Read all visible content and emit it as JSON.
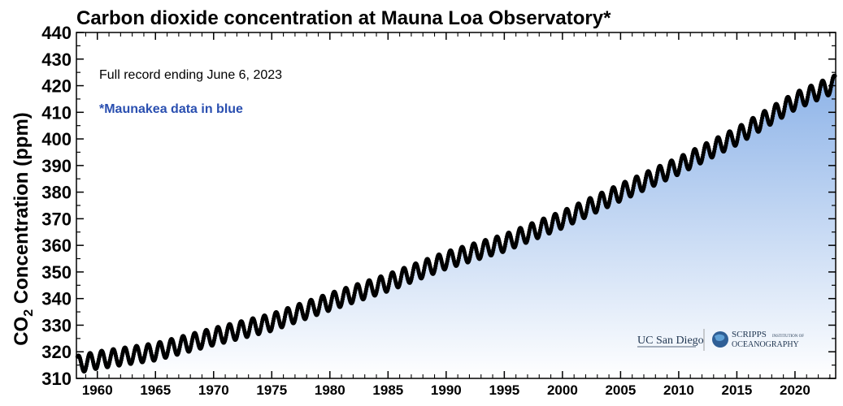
{
  "chart_data": {
    "type": "line",
    "title": "Carbon dioxide concentration at Mauna Loa Observatory*",
    "xlabel": "",
    "ylabel_main": "CO",
    "ylabel_sub": "2",
    "ylabel_rest": " Concentration (ppm)",
    "xlim": [
      1958.2,
      2023.5
    ],
    "ylim": [
      310,
      440
    ],
    "x_ticks": [
      1960,
      1965,
      1970,
      1975,
      1980,
      1985,
      1990,
      1995,
      2000,
      2005,
      2010,
      2015,
      2020
    ],
    "y_ticks": [
      310,
      320,
      330,
      340,
      350,
      360,
      370,
      380,
      390,
      400,
      410,
      420,
      430,
      440
    ],
    "grid": false,
    "marker_color": "#000000",
    "fill_color_top": "#8db3e8",
    "fill_color_bottom": "#ffffff",
    "annotations": {
      "record_note": "Full record ending June 6, 2023",
      "maunakea_note": "*Maunakea data in blue"
    },
    "series": [
      {
        "name": "",
        "seasonal_amplitude_ppm": 3.2,
        "yearly_trend": [
          {
            "x": 1958.0,
            "y": 315.0
          },
          {
            "x": 1960.0,
            "y": 316.9
          },
          {
            "x": 1965.0,
            "y": 320.0
          },
          {
            "x": 1970.0,
            "y": 325.7
          },
          {
            "x": 1975.0,
            "y": 331.1
          },
          {
            "x": 1980.0,
            "y": 338.8
          },
          {
            "x": 1985.0,
            "y": 346.0
          },
          {
            "x": 1990.0,
            "y": 354.4
          },
          {
            "x": 1995.0,
            "y": 360.9
          },
          {
            "x": 2000.0,
            "y": 369.7
          },
          {
            "x": 2005.0,
            "y": 379.9
          },
          {
            "x": 2010.0,
            "y": 389.9
          },
          {
            "x": 2015.0,
            "y": 401.0
          },
          {
            "x": 2020.0,
            "y": 414.2
          },
          {
            "x": 2023.5,
            "y": 420.8
          }
        ]
      }
    ]
  },
  "logos": {
    "ucsd": "UC San Diego",
    "scripps_main": "SCRIPPS",
    "scripps_small": "INSTITUTION OF",
    "scripps_line2": "OCEANOGRAPHY"
  }
}
